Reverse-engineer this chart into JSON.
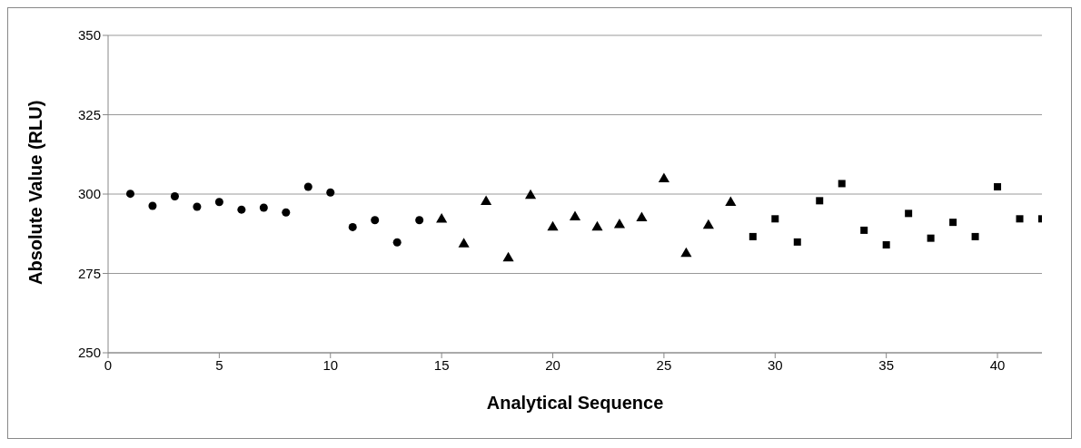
{
  "chart_data": {
    "type": "scatter",
    "xlabel": "Analytical Sequence",
    "ylabel": "Absolute Value (RLU)",
    "xlim": [
      0,
      42
    ],
    "xticks": [
      0,
      5,
      10,
      15,
      20,
      25,
      30,
      35,
      40
    ],
    "ylim": [
      250,
      350
    ],
    "yticks": [
      250,
      275,
      300,
      325,
      350
    ],
    "grid": "y",
    "series": [
      {
        "color": "#000000",
        "marker": "circle",
        "x": [
          1,
          2,
          3,
          4,
          5,
          6,
          7,
          8,
          9,
          10,
          11,
          12,
          13,
          14
        ],
        "values": [
          300.1,
          296.3,
          299.3,
          296,
          297.5,
          295.1,
          295.7,
          294.2,
          302.3,
          300.5,
          289.6,
          291.8,
          284.8,
          291.8
        ]
      },
      {
        "color": "#000000",
        "marker": "triangle",
        "x": [
          15,
          16,
          17,
          18,
          19,
          20,
          21,
          22,
          23,
          24,
          25,
          26,
          27,
          28
        ],
        "values": [
          292,
          284.2,
          297.6,
          279.8,
          299.5,
          289.5,
          292.7,
          289.5,
          290.3,
          292.4,
          304.7,
          281.2,
          290.1,
          297.3
        ]
      },
      {
        "color": "#000000",
        "marker": "square",
        "x": [
          29,
          30,
          31,
          32,
          33,
          34,
          35,
          36,
          37,
          38,
          39,
          40,
          41,
          42
        ],
        "values": [
          286.6,
          292.2,
          284.9,
          297.9,
          303.3,
          288.6,
          284,
          293.9,
          286.1,
          291.1,
          286.6,
          302.3,
          292.2,
          292.2
        ]
      }
    ]
  }
}
